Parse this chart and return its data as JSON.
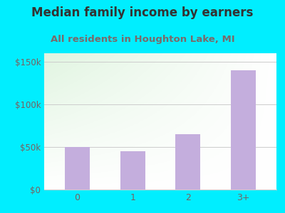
{
  "title": "Median family income by earners",
  "subtitle": "All residents in Houghton Lake, MI",
  "categories": [
    "0",
    "1",
    "2",
    "3+"
  ],
  "values": [
    50000,
    45000,
    65000,
    140000
  ],
  "bar_color": "#c4aedd",
  "ylim": [
    0,
    160000
  ],
  "yticks": [
    0,
    50000,
    100000,
    150000
  ],
  "ytick_labels": [
    "$0",
    "$50k",
    "$100k",
    "$150k"
  ],
  "title_fontsize": 12,
  "subtitle_fontsize": 9.5,
  "title_color": "#333333",
  "subtitle_color": "#7a6a6a",
  "tick_color": "#7a6060",
  "background_outer": "#00eeff",
  "grid_color": "#cccccc",
  "xtick_fontsize": 9,
  "ytick_fontsize": 8.5
}
